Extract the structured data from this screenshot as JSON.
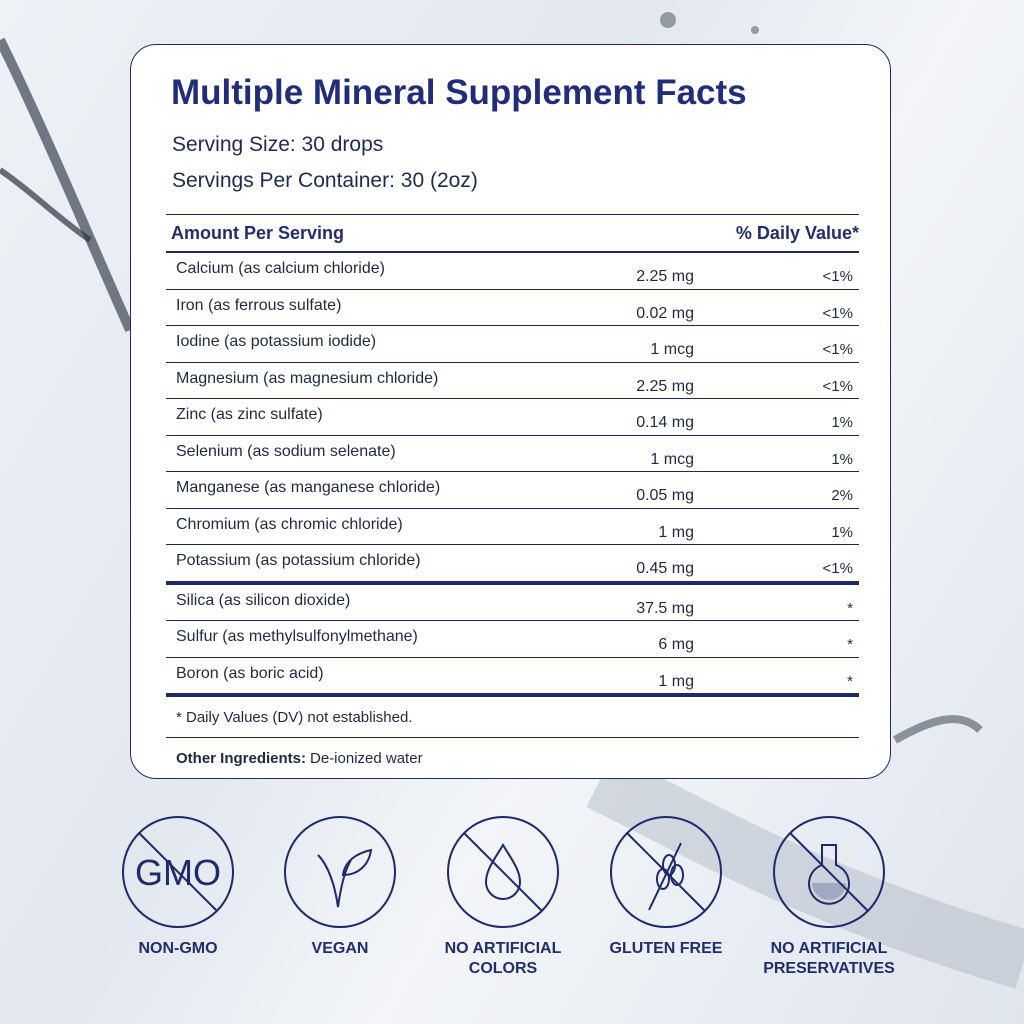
{
  "title": "Multiple Mineral Supplement Facts",
  "serving_size": "Serving Size: 30 drops",
  "servings_per_container": "Servings Per Container: 30 (2oz)",
  "table": {
    "header": [
      "Amount Per Serving",
      "% Daily Value*"
    ],
    "sections": [
      {
        "rows": [
          [
            "Calcium (as calcium chloride)",
            "2.25 mg",
            "<1%"
          ],
          [
            "Iron (as ferrous sulfate)",
            "0.02 mg",
            "<1%"
          ],
          [
            "Iodine (as potassium iodide)",
            "1 mcg",
            "<1%"
          ],
          [
            "Magnesium (as magnesium chloride)",
            "2.25 mg",
            "<1%"
          ],
          [
            "Zinc (as zinc sulfate)",
            "0.14 mg",
            "1%"
          ],
          [
            "Selenium (as sodium selenate)",
            "1 mcg",
            "1%"
          ],
          [
            "Manganese (as manganese chloride)",
            "0.05 mg",
            "2%"
          ],
          [
            "Chromium (as chromic chloride)",
            "1 mg",
            "1%"
          ],
          [
            "Potassium (as potassium chloride)",
            "0.45 mg",
            "<1%"
          ]
        ]
      },
      {
        "rows": [
          [
            "Silica (as silicon dioxide)",
            "37.5 mg",
            "*"
          ],
          [
            "Sulfur (as methylsulfonylmethane)",
            "6 mg",
            "*"
          ],
          [
            "Boron (as boric acid)",
            "1 mg",
            "*"
          ]
        ]
      }
    ]
  },
  "footnote": "* Daily Values (DV) not established.",
  "other_ingredients": {
    "label": "Other Ingredients:",
    "value": "De-ionized water"
  },
  "badges": [
    {
      "icon_text": "GMO",
      "label": "NON-GMO"
    },
    {
      "label": "VEGAN"
    },
    {
      "label": "NO ARTIFICIAL COLORS"
    },
    {
      "label": "GLUTEN FREE"
    },
    {
      "label": "NO ARTIFICIAL PRESERVATIVES"
    }
  ]
}
